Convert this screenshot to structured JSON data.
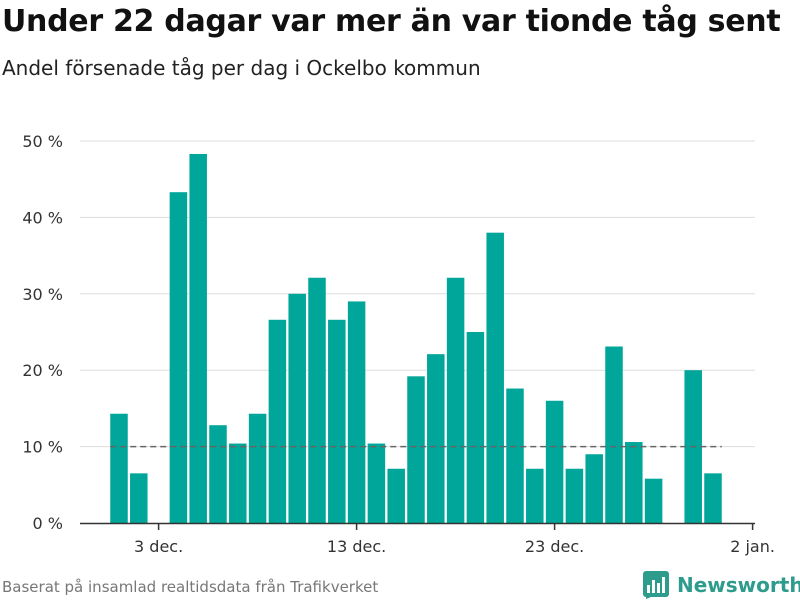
{
  "header": {
    "title": "Under 22 dagar var mer än var tionde tåg sent",
    "subtitle": "Andel försenade tåg per dag i Ockelbo kommun"
  },
  "footer": {
    "source": "Baserat på insamlad realtidsdata från Trafikverket",
    "brand": "Newsworthy"
  },
  "colors": {
    "bar": "#00a699",
    "grid": "#dddddd",
    "reference_line": "#666666",
    "brand": "#2e9c8c"
  },
  "chart_data": {
    "type": "bar",
    "title": "Under 22 dagar var mer än var tionde tåg sent",
    "subtitle": "Andel försenade tåg per dag i Ockelbo kommun",
    "x": [
      "2019-12-01",
      "2019-12-02",
      "2019-12-03",
      "2019-12-04",
      "2019-12-05",
      "2019-12-06",
      "2019-12-07",
      "2019-12-08",
      "2019-12-09",
      "2019-12-10",
      "2019-12-11",
      "2019-12-12",
      "2019-12-13",
      "2019-12-14",
      "2019-12-15",
      "2019-12-16",
      "2019-12-17",
      "2019-12-18",
      "2019-12-19",
      "2019-12-20",
      "2019-12-21",
      "2019-12-22",
      "2019-12-23",
      "2019-12-24",
      "2019-12-25",
      "2019-12-26",
      "2019-12-27",
      "2019-12-28",
      "2019-12-29",
      "2019-12-30",
      "2019-12-31"
    ],
    "values": [
      14.3,
      6.5,
      null,
      43.3,
      48.3,
      12.8,
      10.4,
      14.3,
      26.6,
      30.0,
      32.1,
      26.6,
      29.0,
      10.4,
      7.1,
      19.2,
      22.1,
      32.1,
      25.0,
      38.0,
      17.6,
      7.1,
      16.0,
      7.1,
      9.0,
      23.1,
      10.6,
      5.8,
      null,
      20.0,
      6.5
    ],
    "x_ticks": [
      "3 dec.",
      "13 dec.",
      "23 dec.",
      "2 jan."
    ],
    "x_tick_dates": [
      "2019-12-03",
      "2019-12-13",
      "2019-12-23",
      "2020-01-02"
    ],
    "y_ticks": [
      "0 %",
      "10 %",
      "20 %",
      "30 %",
      "40 %",
      "50 %"
    ],
    "y_tick_values": [
      0,
      10,
      20,
      30,
      40,
      50
    ],
    "ylim": [
      0,
      50
    ],
    "reference_line": 10,
    "grid": true,
    "xlabel": "",
    "ylabel": ""
  }
}
